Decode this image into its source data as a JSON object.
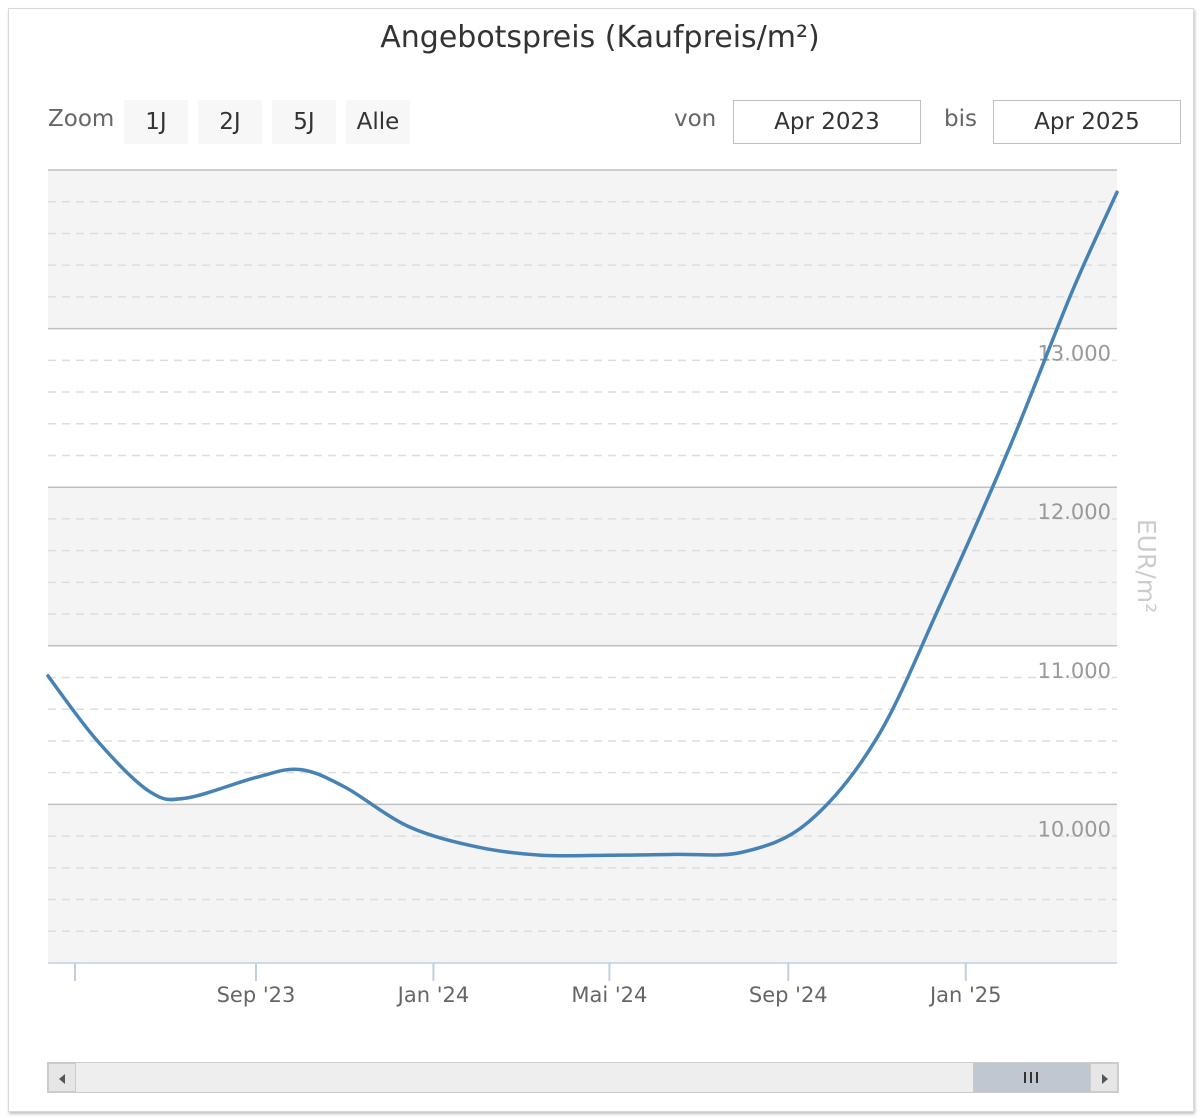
{
  "toolbar": {
    "zoom_label": "Zoom",
    "zoom_buttons": [
      "1J",
      "2J",
      "5J",
      "Alle"
    ],
    "from_label": "von",
    "from_value": "Apr 2023",
    "to_label": "bis",
    "to_value": "Apr 2025"
  },
  "colors": {
    "series": "#4682b4",
    "band": "#f4f4f4",
    "grid_major": "#c0c0c0",
    "grid_minor": "#dddddd"
  },
  "chart_data": {
    "type": "line",
    "title": "Angebotspreis (Kaufpreis/m²)",
    "ylabel": "EUR/m²",
    "ylim": [
      9000,
      14000
    ],
    "y_ticks": [
      10000,
      11000,
      12000,
      13000
    ],
    "y_tick_labels": [
      "10.000",
      "11.000",
      "12.000",
      "13.000"
    ],
    "x_ticks": [
      "2023-09-01",
      "2024-01-01",
      "2024-05-01",
      "2024-09-01",
      "2025-01-01"
    ],
    "x_tick_labels": [
      "Sep '23",
      "Jan '24",
      "Mai '24",
      "Sep '24",
      "Jan '25"
    ],
    "xlim": [
      "2023-04-11",
      "2025-04-15"
    ],
    "grid": true,
    "legend": "none",
    "series": [
      {
        "values": [
          [
            "2023-04-11",
            10810
          ],
          [
            "2023-05-15",
            10400
          ],
          [
            "2023-06-20",
            10080
          ],
          [
            "2023-07-15",
            10040
          ],
          [
            "2023-09-01",
            10170
          ],
          [
            "2023-10-01",
            10220
          ],
          [
            "2023-11-01",
            10110
          ],
          [
            "2023-12-15",
            9860
          ],
          [
            "2024-02-01",
            9730
          ],
          [
            "2024-03-15",
            9680
          ],
          [
            "2024-05-01",
            9680
          ],
          [
            "2024-06-15",
            9685
          ],
          [
            "2024-08-01",
            9700
          ],
          [
            "2024-09-15",
            9890
          ],
          [
            "2024-11-01",
            10420
          ],
          [
            "2024-12-15",
            11270
          ],
          [
            "2025-02-01",
            12270
          ],
          [
            "2025-03-15",
            13230
          ],
          [
            "2025-04-15",
            13860
          ]
        ]
      }
    ]
  }
}
